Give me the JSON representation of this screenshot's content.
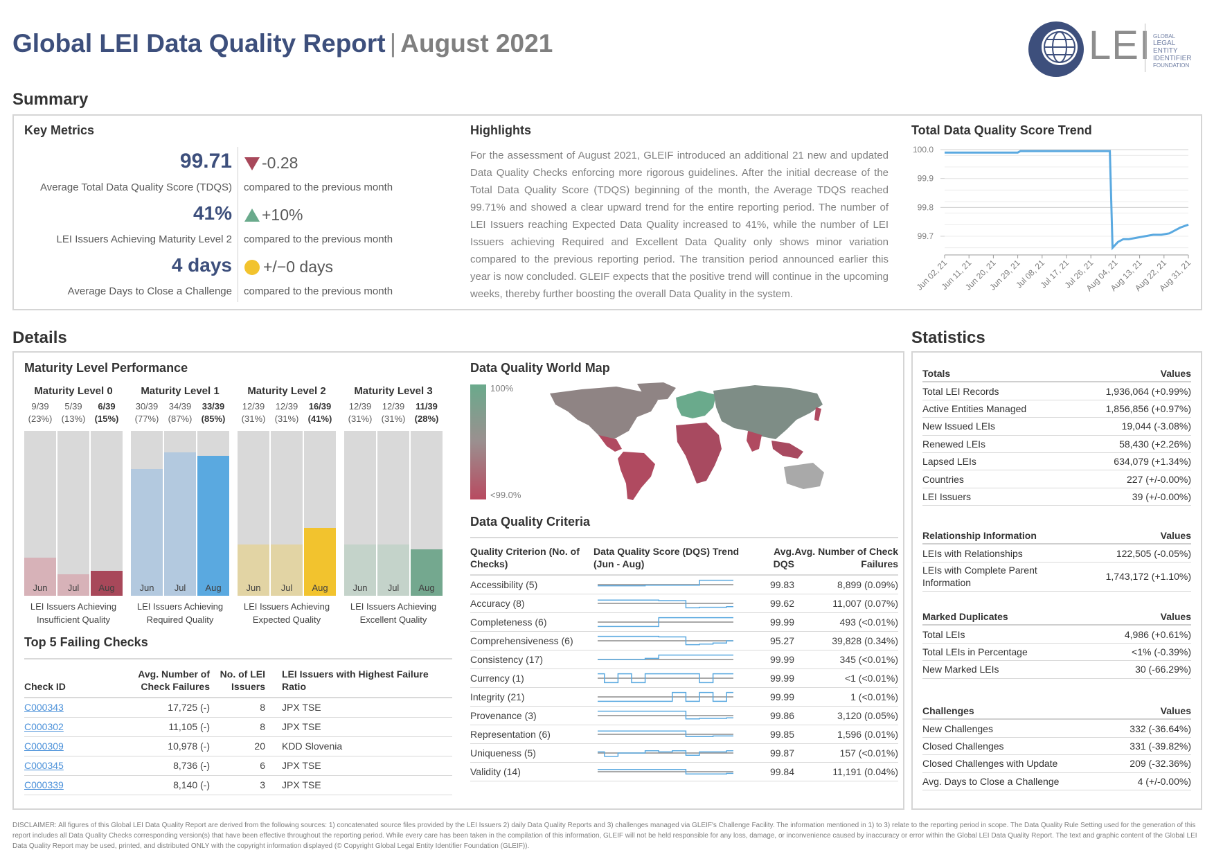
{
  "header": {
    "title": "Global LEI Data Quality Report",
    "separator": "|",
    "period": "August 2021",
    "logo_text": "LEI",
    "logo_small_lines": [
      "GLOBAL",
      "LEGAL",
      "ENTITY",
      "IDENTIFIER",
      "FOUNDATION"
    ]
  },
  "summary": {
    "heading": "Summary",
    "key_metrics": {
      "heading": "Key Metrics",
      "items": [
        {
          "value": "99.71",
          "label": "Average Total Data Quality Score (TDQS)",
          "delta": "-0.28",
          "indicator": "down-triangle-icon",
          "indicator_color": "#a8485a",
          "compare": "compared to the previous month"
        },
        {
          "value": "41%",
          "label": "LEI Issuers Achieving Maturity Level 2",
          "delta": "+10%",
          "indicator": "up-triangle-icon",
          "indicator_color": "#6aaa8c",
          "compare": "compared to the previous month"
        },
        {
          "value": "4 days",
          "label": "Average Days to Close a Challenge",
          "delta": "+/−0 days",
          "indicator": "circle-icon",
          "indicator_color": "#f2c32e",
          "compare": "compared to the previous month"
        }
      ]
    },
    "highlights": {
      "heading": "Highlights",
      "text": "For the assessment of August 2021, GLEIF introduced an additional 21 new and updated Data Quality Checks enforcing more rigorous guidelines. After the initial decrease of the Total Data Quality Score (TDQS) beginning of the month, the Average TDQS reached 99.71% and showed a clear upward trend for the entire reporting period. The number of LEI Issuers reaching Expected Data Quality increased to 41%, while the number of LEI Issuers achieving Required and Excellent Data Quality only shows minor variation compared to the previous reporting period. The transition period announced earlier this year is now concluded. GLEIF expects that the positive trend will continue in the upcoming weeks, thereby further boosting the overall Data Quality in the system."
    },
    "trend": {
      "heading": "Total Data Quality Score Trend",
      "chart_data": {
        "type": "line",
        "title": "Total Data Quality Score Trend",
        "y_ticks": [
          "100.0",
          "99.9",
          "99.8",
          "99.7"
        ],
        "ylim": [
          99.64,
          100.0
        ],
        "x_ticks": [
          "Jun 02, 21",
          "Jun 11, 21",
          "Jun 20, 21",
          "Jun 29, 21",
          "Jul 08, 21",
          "Jul 17, 21",
          "Jul 26, 21",
          "Aug 04, 21",
          "Aug 13, 21",
          "Aug 22, 21",
          "Aug 31, 21"
        ],
        "grid": true,
        "color": "#5aa9e0",
        "series": [
          {
            "x": [
              "Jun 02, 21",
              "Jun 29, 21",
              "Jun 30, 21",
              "Aug 02, 21",
              "Aug 03, 21",
              "Aug 05, 21",
              "Aug 07, 21",
              "Aug 09, 21",
              "Aug 12, 21",
              "Aug 15, 21",
              "Aug 18, 21",
              "Aug 21, 21",
              "Aug 24, 21",
              "Aug 26, 21",
              "Aug 28, 21",
              "Aug 31, 21"
            ],
            "values": [
              99.99,
              99.99,
              99.995,
              99.995,
              99.66,
              99.68,
              99.69,
              99.69,
              99.695,
              99.7,
              99.705,
              99.705,
              99.71,
              99.72,
              99.73,
              99.74
            ]
          }
        ]
      }
    }
  },
  "details": {
    "heading": "Details",
    "maturity": {
      "heading": "Maturity Level Performance",
      "months": [
        "Jun",
        "Jul",
        "Aug"
      ],
      "levels": [
        {
          "title": "Maturity Level 0",
          "caption": [
            "LEI Issuers Achieving",
            "Insufficient Quality"
          ],
          "fractions": [
            [
              "9/39",
              "(23%)"
            ],
            [
              "5/39",
              "(13%)"
            ],
            [
              "6/39",
              "(15%)"
            ]
          ],
          "ratios": [
            0.23,
            0.13,
            0.15
          ],
          "colors": [
            "#d7b2b8",
            "#d7b2b8",
            "#a8485a"
          ]
        },
        {
          "title": "Maturity Level 1",
          "caption": [
            "LEI Issuers Achieving",
            "Required Quality"
          ],
          "fractions": [
            [
              "30/39",
              "(77%)"
            ],
            [
              "34/39",
              "(87%)"
            ],
            [
              "33/39",
              "(85%)"
            ]
          ],
          "ratios": [
            0.77,
            0.87,
            0.85
          ],
          "colors": [
            "#b3c9df",
            "#b3c9df",
            "#5aa9e0"
          ]
        },
        {
          "title": "Maturity Level 2",
          "caption": [
            "LEI Issuers Achieving",
            "Expected Quality"
          ],
          "fractions": [
            [
              "12/39",
              "(31%)"
            ],
            [
              "12/39",
              "(31%)"
            ],
            [
              "16/39",
              "(41%)"
            ]
          ],
          "ratios": [
            0.31,
            0.31,
            0.41
          ],
          "colors": [
            "#e2d4a4",
            "#e2d4a4",
            "#f2c32e"
          ]
        },
        {
          "title": "Maturity Level 3",
          "caption": [
            "LEI Issuers Achieving",
            "Excellent Quality"
          ],
          "fractions": [
            [
              "12/39",
              "(31%)"
            ],
            [
              "12/39",
              "(31%)"
            ],
            [
              "11/39",
              "(28%)"
            ]
          ],
          "ratios": [
            0.31,
            0.31,
            0.28
          ],
          "colors": [
            "#c4d3ca",
            "#c4d3ca",
            "#74a88f"
          ]
        }
      ]
    },
    "failing": {
      "heading": "Top 5 Failing Checks",
      "columns": [
        "Check ID",
        "Avg. Number of Check Failures",
        "No. of LEI Issuers",
        "LEI Issuers with Highest Failure Ratio"
      ],
      "rows": [
        {
          "id": "C000343",
          "failures": "17,725 (-)",
          "issuers": "8",
          "highest": "JPX TSE"
        },
        {
          "id": "C000302",
          "failures": "11,105 (-)",
          "issuers": "8",
          "highest": "JPX TSE"
        },
        {
          "id": "C000309",
          "failures": "10,978 (-)",
          "issuers": "20",
          "highest": "KDD Slovenia"
        },
        {
          "id": "C000345",
          "failures": "8,736 (-)",
          "issuers": "6",
          "highest": "JPX TSE"
        },
        {
          "id": "C000339",
          "failures": "8,140 (-)",
          "issuers": "3",
          "highest": "JPX TSE"
        }
      ]
    },
    "world_map": {
      "heading": "Data Quality World Map",
      "legend_high": "100%",
      "legend_low": "<99.0%",
      "color_high": "#6aaa8c",
      "color_low": "#b84a60"
    },
    "criteria": {
      "heading": "Data Quality Criteria",
      "columns": [
        "Quality Criterion (No. of Checks)",
        "Data Quality Score (DQS) Trend (Jun - Aug)",
        "Avg. DQS",
        "Avg. Number of Check Failures"
      ],
      "rows": [
        {
          "name": "Accessibility (5)",
          "dqs": "99.83",
          "failures": "8,899 (0.09%)",
          "spark": [
            0.4,
            0.4,
            0.4,
            0.4,
            0.45,
            0.45,
            0.45,
            0.45,
            0.9,
            0.9,
            0.9
          ]
        },
        {
          "name": "Accuracy (8)",
          "dqs": "99.62",
          "failures": "11,007 (0.07%)",
          "spark": [
            0.8,
            0.8,
            0.8,
            0.8,
            0.8,
            0.75,
            0.75,
            0.1,
            0.15,
            0.15,
            0.2
          ]
        },
        {
          "name": "Completeness (6)",
          "dqs": "99.99",
          "failures": "493 (<0.01%)",
          "spark": [
            0.1,
            0.1,
            0.1,
            0.1,
            0.1,
            0.9,
            0.9,
            0.9,
            0.9,
            0.9,
            0.9
          ]
        },
        {
          "name": "Comprehensiveness (6)",
          "dqs": "95.27",
          "failures": "39,828 (0.34%)",
          "spark": [
            0.9,
            0.9,
            0.9,
            0.9,
            0.9,
            0.85,
            0.85,
            0.15,
            0.2,
            0.3,
            0.5
          ]
        },
        {
          "name": "Consistency (17)",
          "dqs": "99.99",
          "failures": "345 (<0.01%)",
          "spark": [
            0.5,
            0.5,
            0.5,
            0.5,
            0.6,
            0.9,
            0.9,
            0.9,
            0.9,
            0.9,
            0.9
          ]
        },
        {
          "name": "Currency (1)",
          "dqs": "99.99",
          "failures": "<1 (<0.01%)",
          "spark": [
            0.9,
            0.1,
            0.9,
            0.1,
            0.9,
            0.9,
            0.9,
            0.9,
            0.1,
            0.9,
            0.9
          ]
        },
        {
          "name": "Integrity (21)",
          "dqs": "99.99",
          "failures": "1 (<0.01%)",
          "spark": [
            0.1,
            0.1,
            0.1,
            0.1,
            0.1,
            0.1,
            0.9,
            0.1,
            0.9,
            0.1,
            0.9
          ]
        },
        {
          "name": "Provenance (3)",
          "dqs": "99.86",
          "failures": "3,120 (0.05%)",
          "spark": [
            0.9,
            0.9,
            0.9,
            0.9,
            0.9,
            0.9,
            0.9,
            0.2,
            0.25,
            0.25,
            0.3
          ]
        },
        {
          "name": "Representation (6)",
          "dqs": "99.85",
          "failures": "1,596 (0.01%)",
          "spark": [
            0.8,
            0.8,
            0.8,
            0.8,
            0.8,
            0.8,
            0.8,
            0.3,
            0.3,
            0.35,
            0.35
          ]
        },
        {
          "name": "Uniqueness (5)",
          "dqs": "99.87",
          "failures": "157 (<0.01%)",
          "spark": [
            0.6,
            0.2,
            0.5,
            0.5,
            0.7,
            0.6,
            0.7,
            0.3,
            0.6,
            0.6,
            0.7
          ]
        },
        {
          "name": "Validity (14)",
          "dqs": "99.84",
          "failures": "11,191 (0.04%)",
          "spark": [
            0.7,
            0.7,
            0.7,
            0.7,
            0.7,
            0.7,
            0.7,
            0.3,
            0.3,
            0.3,
            0.35
          ]
        }
      ]
    }
  },
  "statistics": {
    "heading": "Statistics",
    "groups": [
      {
        "title": "Totals",
        "values_label": "Values",
        "rows": [
          {
            "label": "Total LEI Records",
            "value": "1,936,064 (+0.99%)"
          },
          {
            "label": "Active Entities Managed",
            "value": "1,856,856 (+0.97%)"
          },
          {
            "label": "New Issued LEIs",
            "value": "19,044 (-3.08%)"
          },
          {
            "label": "Renewed LEIs",
            "value": "58,430 (+2.26%)"
          },
          {
            "label": "Lapsed LEIs",
            "value": "634,079 (+1.34%)"
          },
          {
            "label": "Countries",
            "value": "227 (+/-0.00%)"
          },
          {
            "label": "LEI Issuers",
            "value": "39 (+/-0.00%)"
          }
        ]
      },
      {
        "title": "Relationship Information",
        "values_label": "Values",
        "rows": [
          {
            "label": "LEIs with Relationships",
            "value": "122,505 (-0.05%)"
          },
          {
            "label": "LEIs with Complete Parent Information",
            "value": "1,743,172 (+1.10%)"
          }
        ]
      },
      {
        "title": "Marked Duplicates",
        "values_label": "Values",
        "rows": [
          {
            "label": "Total LEIs",
            "value": "4,986 (+0.61%)"
          },
          {
            "label": "Total LEIs in Percentage",
            "value": "<1% (-0.39%)"
          },
          {
            "label": "New Marked LEIs",
            "value": "30 (-66.29%)"
          }
        ]
      },
      {
        "title": "Challenges",
        "values_label": "Values",
        "rows": [
          {
            "label": "New Challenges",
            "value": "332 (-36.64%)"
          },
          {
            "label": "Closed Challenges",
            "value": "331 (-39.82%)"
          },
          {
            "label": "Closed Challenges with Update",
            "value": "209 (-32.36%)"
          },
          {
            "label": "Avg. Days to Close a Challenge",
            "value": "4 (+/-0.00%)"
          }
        ]
      }
    ]
  },
  "disclaimer": "DISCLAIMER: All figures of this Global LEI Data Quality Report are derived from the following sources: 1) concatenated source files provided by the LEI Issuers 2) daily Data Quality Reports and 3) challenges managed via GLEIF's Challenge Facility. The information mentioned in 1) to 3) relate to the reporting period in scope. The Data Quality Rule Setting used for the generation of this report includes all Data Quality Checks corresponding version(s) that have been effective throughout the reporting period. While every care has been taken in the compilation of this information, GLEIF will not be held responsible for any loss, damage, or inconvenience caused by inaccuracy or error within the Global LEI Data Quality Report. The text and graphic content of the Global LEI Data Quality Report may be used, printed, and distributed ONLY with the copyright information displayed (© Copyright Global Legal Entity Identifier Foundation (GLEIF))."
}
